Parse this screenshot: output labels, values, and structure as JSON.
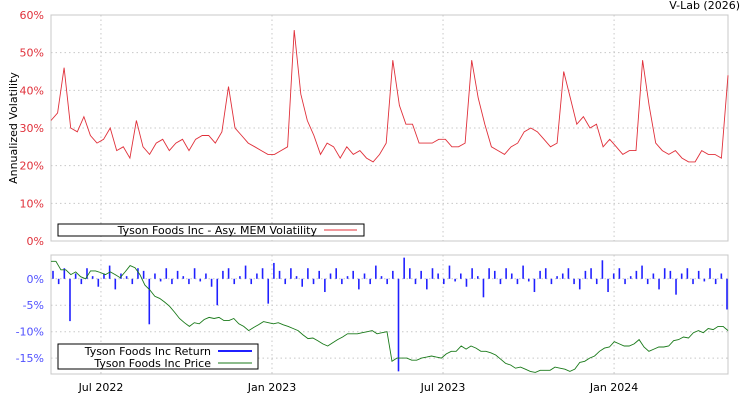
{
  "watermark": "V-Lab (2026)",
  "chart_data": [
    {
      "type": "line",
      "title": "",
      "ylabel": "Annualized Volatility",
      "ylim": [
        0,
        60
      ],
      "yticks": [
        0,
        10,
        20,
        30,
        40,
        50,
        60
      ],
      "ytick_labels": [
        "0%",
        "10%",
        "20%",
        "30%",
        "40%",
        "50%",
        "60%"
      ],
      "grid": true,
      "legend_position": "bottom-center",
      "x_range": [
        2022.354,
        2024.333
      ],
      "sampling": "weekly",
      "series": [
        {
          "name": "Tyson Foods Inc - Asy. MEM Volatility",
          "color": "#e0303a",
          "values": [
            32,
            34,
            46,
            30,
            29,
            33,
            28,
            26,
            27,
            30,
            24,
            25,
            22,
            32,
            25,
            23,
            26,
            27,
            24,
            26,
            27,
            24,
            27,
            28,
            28,
            26,
            29,
            41,
            30,
            28,
            26,
            25,
            24,
            23,
            23,
            24,
            25,
            56,
            39,
            32,
            28,
            23,
            26,
            25,
            22,
            25,
            23,
            24,
            22,
            21,
            23,
            26,
            48,
            36,
            31,
            31,
            26,
            26,
            26,
            27,
            27,
            25,
            25,
            26,
            48,
            38,
            31,
            25,
            24,
            23,
            25,
            26,
            29,
            30,
            29,
            27,
            25,
            26,
            45,
            38,
            31,
            33,
            30,
            31,
            25,
            27,
            25,
            23,
            24,
            24,
            48,
            36,
            26,
            24,
            23,
            24,
            22,
            21,
            21,
            24,
            23,
            23,
            22,
            44
          ]
        }
      ]
    },
    {
      "type": "line",
      "ylim": [
        -18,
        4.5
      ],
      "yticks": [
        0,
        -5,
        -10,
        -15
      ],
      "ytick_labels": [
        "0%",
        "-5%",
        "-10%",
        "-15%"
      ],
      "x_range": [
        2022.354,
        2024.333
      ],
      "xticks": [
        2022.5,
        2023.0,
        2023.5,
        2024.0
      ],
      "xtick_labels": [
        "Jul 2022",
        "Jan 2023",
        "Jul 2023",
        "Jan 2024"
      ],
      "grid": true,
      "legend_position": "bottom-left",
      "series": [
        {
          "name": "Tyson Foods Inc Return",
          "color": "#2020ff",
          "kind": "bars",
          "values": [
            1.5,
            -1,
            2,
            -8,
            1,
            -1,
            2,
            0.5,
            -1.5,
            1,
            2.5,
            -2,
            1,
            0.5,
            -1,
            2,
            1.5,
            -8.6,
            1,
            -0.5,
            2,
            -1,
            1.5,
            0.5,
            -1,
            2,
            -0.5,
            1,
            -1.5,
            -5,
            1.5,
            2,
            -1,
            0.5,
            2.5,
            -1,
            1,
            2,
            -4.7,
            3,
            1.5,
            -1,
            2,
            0.5,
            -1.5,
            2,
            -1,
            1.5,
            -2.5,
            1,
            2,
            -1,
            0.5,
            1.5,
            -2,
            1,
            -1,
            2.5,
            0.5,
            -1,
            1.5,
            -17.5,
            4,
            2,
            -1,
            1.5,
            -2,
            2,
            1,
            -1,
            2.5,
            -0.5,
            1,
            -1.5,
            2,
            0.5,
            -3.5,
            2,
            1.5,
            -1,
            2,
            1,
            -1,
            2.5,
            -0.5,
            -2.5,
            1.5,
            2,
            -1,
            0.5,
            1,
            2,
            -1,
            -2,
            1.5,
            2,
            -1,
            3.5,
            -2.5,
            1,
            2,
            -1,
            0.5,
            1.5,
            2.5,
            -1,
            1,
            -2,
            2,
            1.5,
            -3,
            1,
            2,
            -1,
            1.5,
            -0.5,
            2,
            -1,
            1,
            -5.8
          ]
        },
        {
          "name": "Tyson Foods Inc Price",
          "color": "#1a7a1a",
          "kind": "line",
          "values": [
            3.3,
            3.3,
            1.7,
            1.7,
            0.8,
            1.3,
            0.4,
            0,
            1.5,
            1.5,
            1.2,
            0.8,
            1.3,
            0.8,
            0.2,
            1.3,
            2.5,
            2.1,
            0.8,
            -1.2,
            -2.1,
            -3.3,
            -3.7,
            -4.4,
            -5.2,
            -6.3,
            -7.5,
            -8.3,
            -9.0,
            -8.3,
            -8.5,
            -7.7,
            -7.3,
            -7.5,
            -7.3,
            -7.9,
            -7.9,
            -7.5,
            -8.5,
            -9.0,
            -9.8,
            -9.2,
            -8.7,
            -8.1,
            -8.3,
            -8.5,
            -8.3,
            -8.7,
            -9.0,
            -9.4,
            -9.8,
            -10.6,
            -11.3,
            -11.2,
            -11.7,
            -12.3,
            -12.7,
            -12.1,
            -11.5,
            -11.0,
            -10.4,
            -10.4,
            -10.4,
            -10.2,
            -10.0,
            -9.8,
            -10.4,
            -10.2,
            -10.0,
            -15.6,
            -15.0,
            -15.0,
            -15.0,
            -15.4,
            -15.4,
            -15.0,
            -14.8,
            -14.6,
            -14.8,
            -15.0,
            -14.2,
            -13.7,
            -13.7,
            -12.7,
            -13.3,
            -12.7,
            -13.1,
            -13.7,
            -13.7,
            -14.0,
            -14.4,
            -15.2,
            -16.0,
            -16.3,
            -16.9,
            -16.7,
            -17.1,
            -17.5,
            -17.7,
            -17.3,
            -17.3,
            -17.3,
            -16.7,
            -16.9,
            -17.1,
            -17.5,
            -17.1,
            -15.8,
            -15.6,
            -15.0,
            -14.6,
            -13.7,
            -13.1,
            -12.9,
            -11.9,
            -12.3,
            -12.7,
            -12.7,
            -12.3,
            -11.5,
            -12.9,
            -13.7,
            -13.3,
            -12.9,
            -12.9,
            -12.7,
            -11.7,
            -11.5,
            -11.0,
            -11.2,
            -10.2,
            -9.8,
            -10.2,
            -9.4,
            -9.6,
            -9.0,
            -9.0,
            -9.8
          ]
        }
      ]
    }
  ]
}
